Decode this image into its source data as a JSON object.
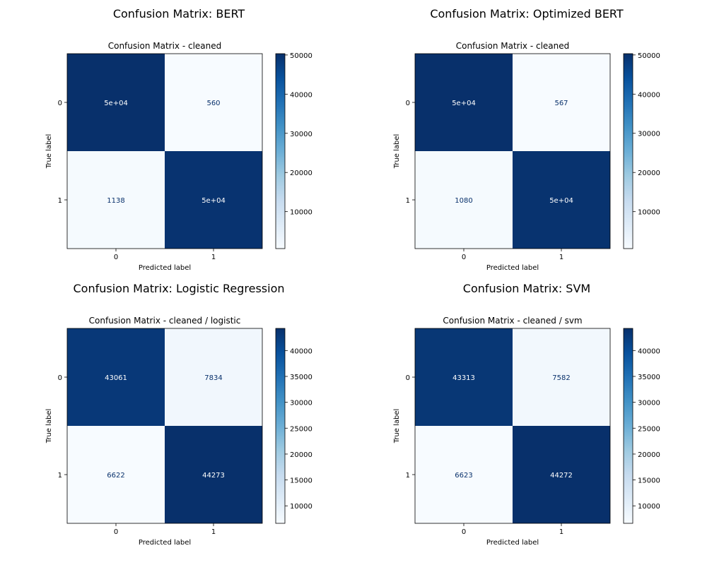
{
  "chart_data": [
    {
      "type": "heatmap",
      "panel_title": "Confusion Matrix: BERT",
      "title": "Confusion Matrix - cleaned",
      "xlabel": "Predicted label",
      "ylabel": "True label",
      "x_ticks": [
        "0",
        "1"
      ],
      "y_ticks": [
        "0",
        "1"
      ],
      "matrix": [
        [
          50335,
          560
        ],
        [
          1138,
          49757
        ]
      ],
      "cell_labels": [
        [
          "5e+04",
          "560"
        ],
        [
          "1138",
          "5e+04"
        ]
      ],
      "colorbar_range": [
        560,
        50335
      ],
      "colorbar_ticks": [
        10000,
        20000,
        30000,
        40000,
        50000
      ],
      "colormap": "Blues"
    },
    {
      "type": "heatmap",
      "panel_title": "Confusion Matrix: Optimized BERT",
      "title": "Confusion Matrix - cleaned",
      "xlabel": "Predicted label",
      "ylabel": "True label",
      "x_ticks": [
        "0",
        "1"
      ],
      "y_ticks": [
        "0",
        "1"
      ],
      "matrix": [
        [
          50328,
          567
        ],
        [
          1080,
          49815
        ]
      ],
      "cell_labels": [
        [
          "5e+04",
          "567"
        ],
        [
          "1080",
          "5e+04"
        ]
      ],
      "colorbar_range": [
        567,
        50328
      ],
      "colorbar_ticks": [
        10000,
        20000,
        30000,
        40000,
        50000
      ],
      "colormap": "Blues"
    },
    {
      "type": "heatmap",
      "panel_title": "Confusion Matrix: Logistic Regression",
      "title": "Confusion Matrix - cleaned / logistic",
      "xlabel": "Predicted label",
      "ylabel": "True label",
      "x_ticks": [
        "0",
        "1"
      ],
      "y_ticks": [
        "0",
        "1"
      ],
      "matrix": [
        [
          43061,
          7834
        ],
        [
          6622,
          44273
        ]
      ],
      "cell_labels": [
        [
          "43061",
          "7834"
        ],
        [
          "6622",
          "44273"
        ]
      ],
      "colorbar_range": [
        6622,
        44273
      ],
      "colorbar_ticks": [
        10000,
        15000,
        20000,
        25000,
        30000,
        35000,
        40000
      ],
      "colormap": "Blues"
    },
    {
      "type": "heatmap",
      "panel_title": "Confusion Matrix: SVM",
      "title": "Confusion Matrix - cleaned / svm",
      "xlabel": "Predicted label",
      "ylabel": "True label",
      "x_ticks": [
        "0",
        "1"
      ],
      "y_ticks": [
        "0",
        "1"
      ],
      "matrix": [
        [
          43313,
          7582
        ],
        [
          6623,
          44272
        ]
      ],
      "cell_labels": [
        [
          "43313",
          "7582"
        ],
        [
          "6623",
          "44272"
        ]
      ],
      "colorbar_range": [
        6623,
        44272
      ],
      "colorbar_ticks": [
        10000,
        15000,
        20000,
        25000,
        30000,
        35000,
        40000
      ],
      "colormap": "Blues"
    }
  ]
}
